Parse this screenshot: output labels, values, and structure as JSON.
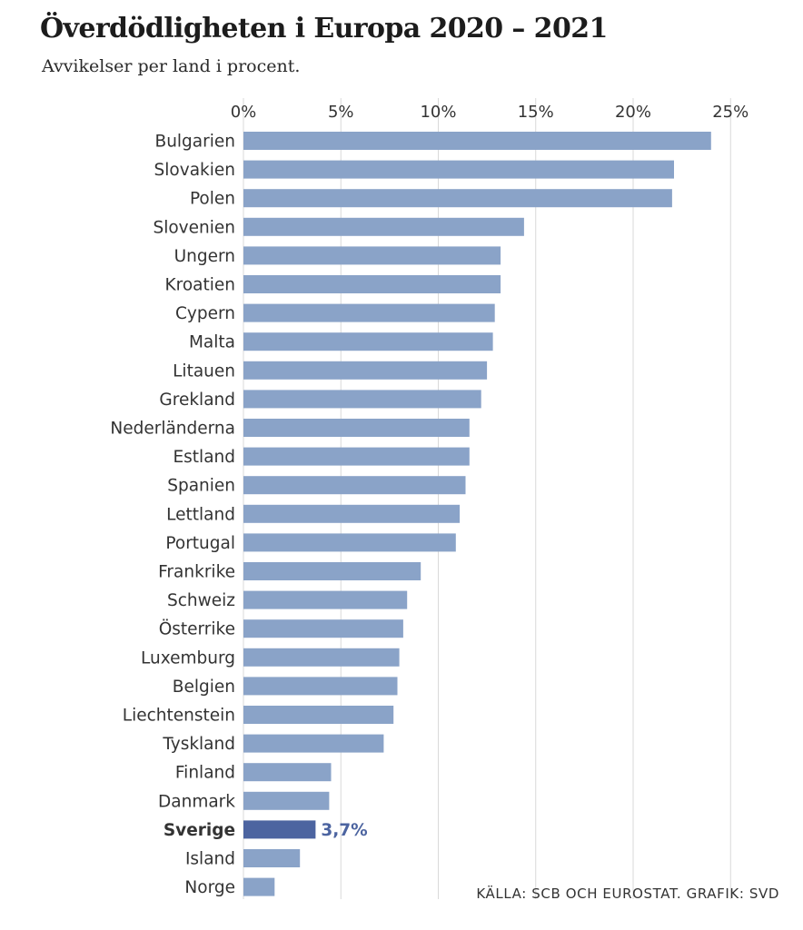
{
  "colors": {
    "bar": "#8aa3c8",
    "highlight": "#4c64a0",
    "grid": "#d9d9d9",
    "text": "#333333"
  },
  "chart_data": {
    "type": "bar",
    "orientation": "horizontal",
    "title": "Överdödligheten i Europa 2020 – 2021",
    "subtitle": "Avvikelser per land i procent.",
    "xlabel": "",
    "ylabel": "",
    "xlim": [
      0,
      25
    ],
    "x_ticks": [
      {
        "value": 0,
        "label": "0%"
      },
      {
        "value": 5,
        "label": "5%"
      },
      {
        "value": 10,
        "label": "10%"
      },
      {
        "value": 15,
        "label": "15%"
      },
      {
        "value": 20,
        "label": "20%"
      },
      {
        "value": 25,
        "label": "25%"
      }
    ],
    "grid": true,
    "categories": [
      "Bulgarien",
      "Slovakien",
      "Polen",
      "Slovenien",
      "Ungern",
      "Kroatien",
      "Cypern",
      "Malta",
      "Litauen",
      "Grekland",
      "Nederländerna",
      "Estland",
      "Spanien",
      "Lettland",
      "Portugal",
      "Frankrike",
      "Schweiz",
      "Österrike",
      "Luxemburg",
      "Belgien",
      "Liechtenstein",
      "Tyskland",
      "Finland",
      "Danmark",
      "Sverige",
      "Island",
      "Norge"
    ],
    "values": [
      24.0,
      22.1,
      22.0,
      14.4,
      13.2,
      13.2,
      12.9,
      12.8,
      12.5,
      12.2,
      11.6,
      11.6,
      11.4,
      11.1,
      10.9,
      9.1,
      8.4,
      8.2,
      8.0,
      7.9,
      7.7,
      7.2,
      4.5,
      4.4,
      3.7,
      2.9,
      1.6
    ],
    "highlight": {
      "category": "Sverige",
      "label": "3,7%"
    },
    "source": "KÄLLA: SCB OCH EUROSTAT. GRAFIK: SVD"
  }
}
